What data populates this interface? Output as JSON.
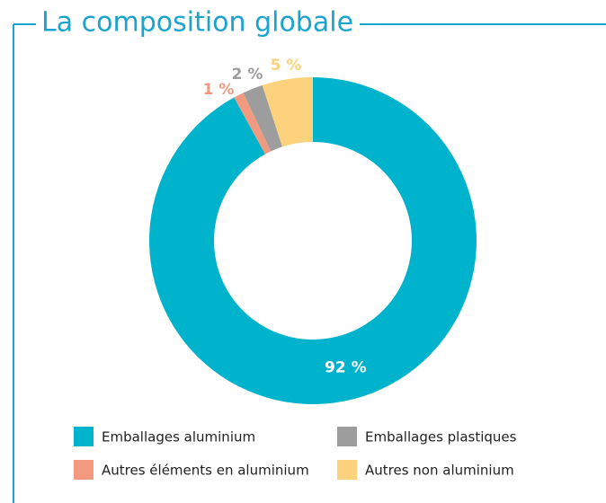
{
  "chart_data": {
    "type": "donut",
    "title": "La composition globale",
    "categories": [
      "Emballages aluminium",
      "Autres éléments en aluminium",
      "Emballages plastiques",
      "Autres non aluminium"
    ],
    "values": [
      92,
      1,
      2,
      5
    ],
    "value_labels": [
      "92 %",
      "1 %",
      "2 %",
      "5 %"
    ],
    "colors": [
      "#00b3cc",
      "#f19a7f",
      "#9d9d9d",
      "#fdd27c"
    ],
    "legend": "bottom"
  }
}
